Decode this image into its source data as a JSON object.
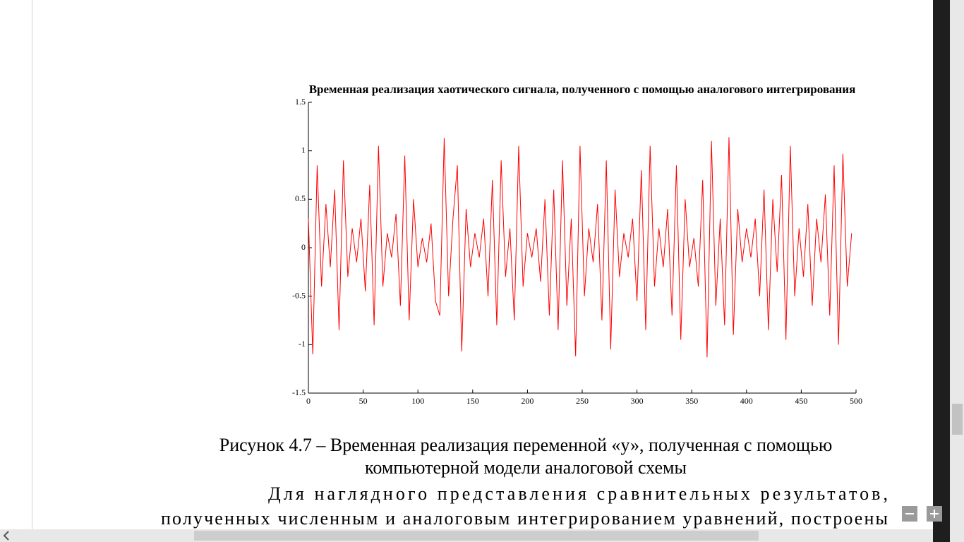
{
  "chart_data": {
    "type": "line",
    "title": "Временная реализация хаотического сигнала, полученного с помощью аналогового интегрирования",
    "x": [
      0,
      4,
      8,
      12,
      16,
      20,
      24,
      28,
      32,
      36,
      40,
      44,
      48,
      52,
      56,
      60,
      64,
      68,
      72,
      76,
      80,
      84,
      88,
      92,
      96,
      100,
      104,
      108,
      112,
      116,
      120,
      124,
      128,
      132,
      136,
      140,
      144,
      148,
      152,
      156,
      160,
      164,
      168,
      172,
      176,
      180,
      184,
      188,
      192,
      196,
      200,
      204,
      208,
      212,
      216,
      220,
      224,
      228,
      232,
      236,
      240,
      244,
      248,
      252,
      256,
      260,
      264,
      268,
      272,
      276,
      280,
      284,
      288,
      292,
      296,
      300,
      304,
      308,
      312,
      316,
      320,
      324,
      328,
      332,
      336,
      340,
      344,
      348,
      352,
      356,
      360,
      364,
      368,
      372,
      376,
      380,
      384,
      388,
      392,
      396,
      400,
      404,
      408,
      412,
      416,
      420,
      424,
      428,
      432,
      436,
      440,
      444,
      448,
      452,
      456,
      460,
      464,
      468,
      472,
      476,
      480,
      484,
      488,
      492,
      496
    ],
    "values": [
      0.3,
      -1.1,
      0.85,
      -0.4,
      0.45,
      -0.2,
      0.6,
      -0.85,
      0.9,
      -0.3,
      0.2,
      -0.15,
      0.3,
      -0.45,
      0.65,
      -0.8,
      1.05,
      -0.4,
      0.15,
      -0.1,
      0.35,
      -0.6,
      0.95,
      -0.75,
      0.5,
      -0.2,
      0.1,
      -0.15,
      0.25,
      -0.55,
      -0.7,
      1.13,
      -0.5,
      0.3,
      0.85,
      -1.07,
      0.4,
      -0.2,
      0.15,
      -0.1,
      0.3,
      -0.5,
      0.7,
      -0.8,
      0.9,
      -0.3,
      0.2,
      -0.75,
      1.05,
      -0.4,
      0.15,
      -0.1,
      0.2,
      -0.35,
      0.5,
      -0.7,
      0.6,
      -0.85,
      0.9,
      -0.6,
      0.3,
      -1.12,
      1.05,
      -0.5,
      0.2,
      -0.15,
      0.45,
      -0.75,
      0.9,
      -1.05,
      0.6,
      -0.3,
      0.15,
      -0.1,
      0.3,
      -0.55,
      0.8,
      -0.85,
      1.05,
      -0.4,
      0.2,
      -0.2,
      0.4,
      -0.7,
      0.85,
      -0.95,
      0.5,
      -0.2,
      0.1,
      -0.4,
      0.7,
      -1.13,
      1.1,
      -0.6,
      0.3,
      -0.8,
      1.14,
      -0.9,
      0.4,
      -0.15,
      0.2,
      -0.1,
      0.3,
      -0.5,
      0.6,
      -0.85,
      0.5,
      -0.25,
      0.75,
      -0.95,
      1.05,
      -0.5,
      0.2,
      -0.3,
      0.45,
      -0.6,
      0.3,
      -0.15,
      0.55,
      -0.7,
      0.85,
      -1.0,
      0.97,
      -0.4,
      0.15
    ],
    "color": "#ff0000",
    "xlim": [
      0,
      500
    ],
    "xticks": [
      0,
      50,
      100,
      150,
      200,
      250,
      300,
      350,
      400,
      450,
      500
    ],
    "ylim": [
      -1.5,
      1.5
    ],
    "yticks": [
      -1.5,
      -1,
      -0.5,
      0,
      0.5,
      1,
      1.5
    ]
  },
  "caption": [
    "Рисунок 4.7 – Временная реализация переменной «у», полученная с помощью",
    "компьютерной модели аналоговой схемы"
  ],
  "paragraph": [
    "Для наглядного представления сравнительных результатов,",
    "полученных численным и аналоговым интегрированием уравнений, построены"
  ]
}
